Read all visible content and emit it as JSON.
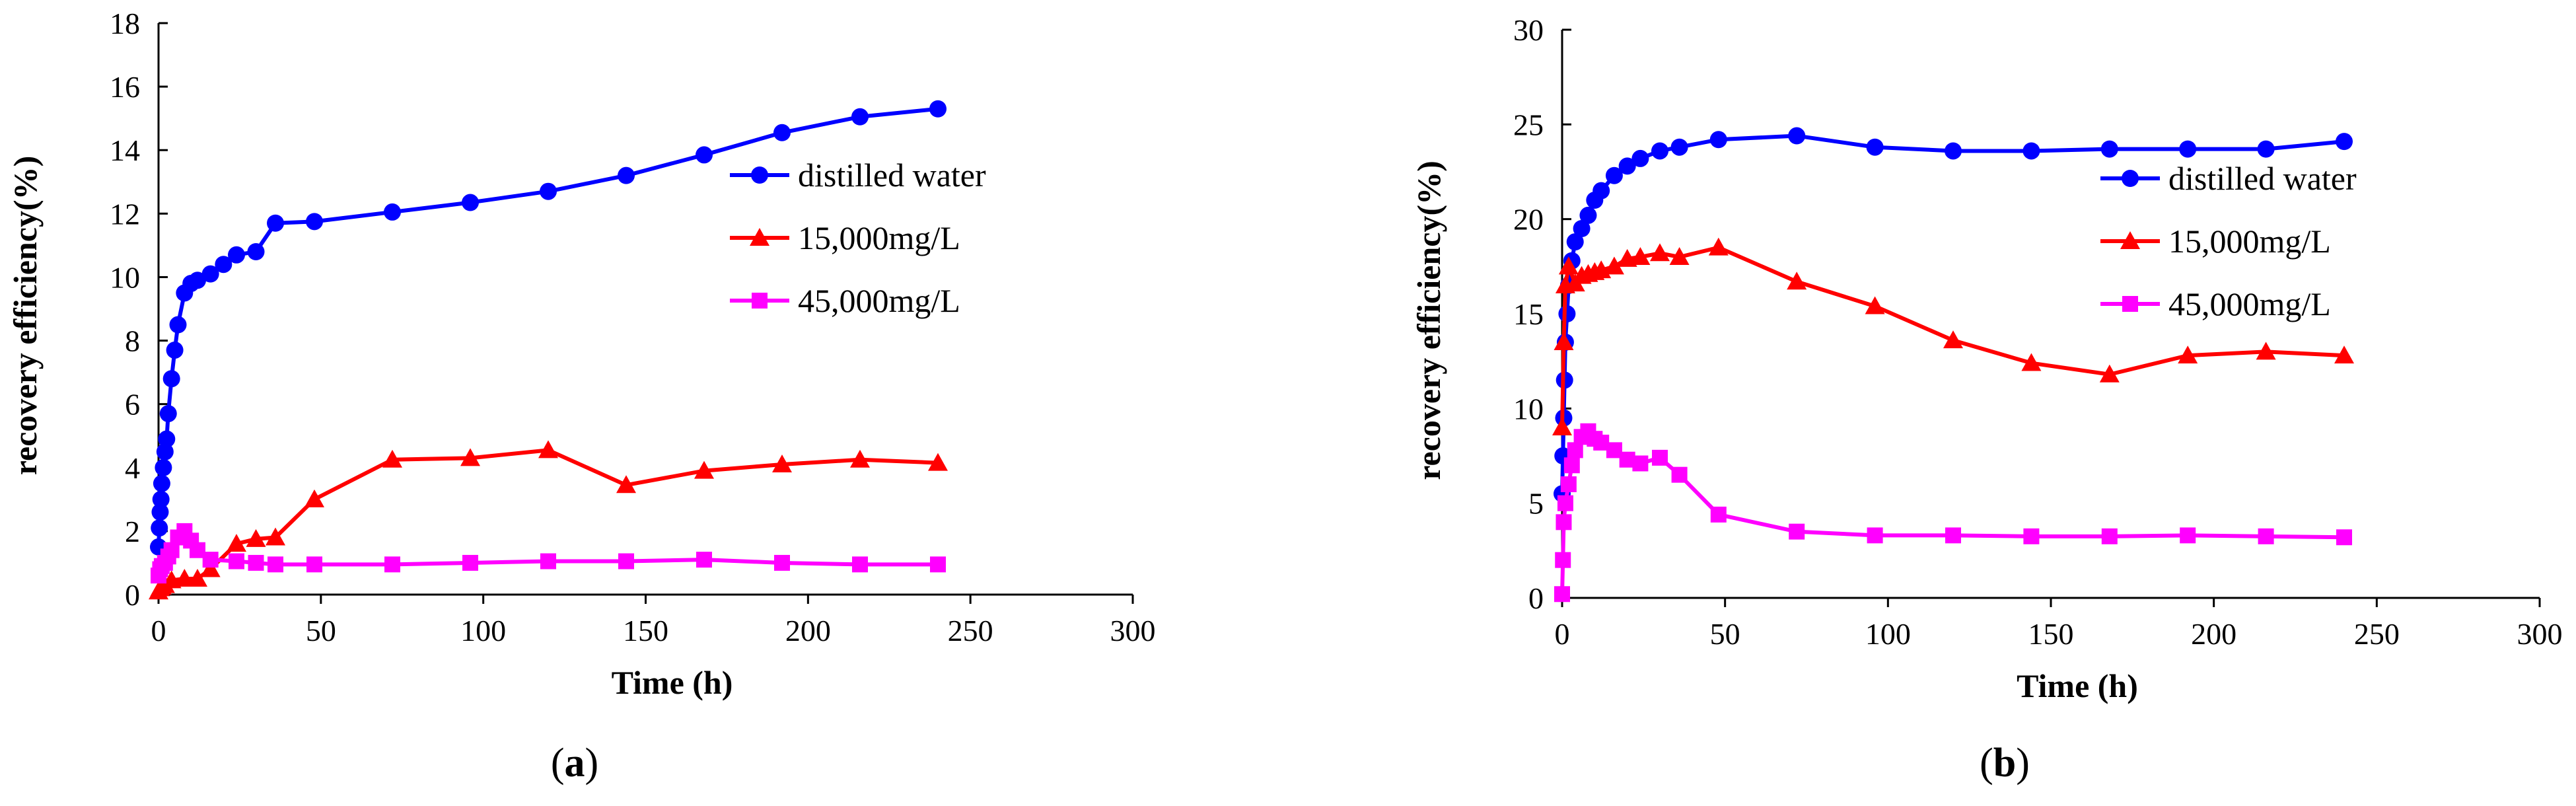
{
  "chart_data": [
    {
      "type": "line",
      "panel": "a",
      "caption_label": "a",
      "xlabel": "Time (h)",
      "ylabel": "recovery efficiency(%)",
      "xlim": [
        0,
        300
      ],
      "ylim": [
        0,
        18
      ],
      "xticks": [
        0,
        50,
        100,
        150,
        200,
        250,
        300
      ],
      "yticks": [
        0,
        2,
        4,
        6,
        8,
        10,
        12,
        14,
        16,
        18
      ],
      "grid": false,
      "legend_position": "right-upper",
      "series": [
        {
          "name": "distilled water",
          "color": "#0000ff",
          "marker": "circle",
          "x": [
            0,
            0.25,
            0.5,
            0.75,
            1,
            1.5,
            2,
            2.5,
            3,
            4,
            5,
            6,
            8,
            10,
            12,
            16,
            20,
            24,
            30,
            36,
            48,
            72,
            96,
            120,
            144,
            168,
            192,
            216,
            240
          ],
          "y": [
            1.5,
            2.1,
            2.6,
            3.0,
            3.5,
            4.0,
            4.5,
            4.9,
            5.7,
            6.8,
            7.7,
            8.5,
            9.5,
            9.8,
            9.9,
            10.1,
            10.4,
            10.7,
            10.8,
            11.7,
            11.75,
            12.05,
            12.35,
            12.7,
            13.2,
            13.85,
            14.55,
            15.05,
            15.3
          ]
        },
        {
          "name": "15,000mg/L",
          "color": "#ff0000",
          "marker": "triangle",
          "x": [
            0,
            0.5,
            1,
            2,
            4,
            8,
            12,
            16,
            24,
            30,
            36,
            48,
            72,
            96,
            120,
            144,
            168,
            192,
            216,
            240
          ],
          "y": [
            0.1,
            0.2,
            0.25,
            0.3,
            0.45,
            0.5,
            0.5,
            0.8,
            1.6,
            1.75,
            1.8,
            3.0,
            4.25,
            4.3,
            4.55,
            3.45,
            3.9,
            4.1,
            4.25,
            4.15
          ]
        },
        {
          "name": "45,000mg/L",
          "color": "#ff00ff",
          "marker": "square",
          "x": [
            0,
            0.5,
            1,
            2,
            3,
            4,
            6,
            8,
            10,
            12,
            16,
            24,
            30,
            36,
            48,
            72,
            96,
            120,
            144,
            168,
            192,
            216,
            240
          ],
          "y": [
            0.6,
            0.8,
            0.9,
            1.0,
            1.2,
            1.4,
            1.8,
            2.0,
            1.7,
            1.4,
            1.1,
            1.05,
            1.0,
            0.95,
            0.95,
            0.95,
            1.0,
            1.05,
            1.05,
            1.1,
            1.0,
            0.95,
            0.95
          ]
        }
      ]
    },
    {
      "type": "line",
      "panel": "b",
      "caption_label": "b",
      "xlabel": "Time (h)",
      "ylabel": "recovery efficiency(%)",
      "xlim": [
        0,
        300
      ],
      "ylim": [
        0,
        30
      ],
      "xticks": [
        0,
        50,
        100,
        150,
        200,
        250,
        300
      ],
      "yticks": [
        0,
        5,
        10,
        15,
        20,
        25,
        30
      ],
      "grid": false,
      "legend_position": "right-upper",
      "series": [
        {
          "name": "distilled water",
          "color": "#0000ff",
          "marker": "circle",
          "x": [
            0,
            0.25,
            0.5,
            0.75,
            1,
            1.5,
            2,
            3,
            4,
            6,
            8,
            10,
            12,
            16,
            20,
            24,
            30,
            36,
            48,
            72,
            96,
            120,
            144,
            168,
            192,
            216,
            240
          ],
          "y": [
            5.5,
            7.5,
            9.5,
            11.5,
            13.5,
            15.0,
            16.5,
            17.8,
            18.8,
            19.5,
            20.2,
            21.0,
            21.5,
            22.3,
            22.8,
            23.2,
            23.6,
            23.8,
            24.2,
            24.4,
            23.8,
            23.6,
            23.6,
            23.7,
            23.7,
            23.7,
            24.1
          ]
        },
        {
          "name": "15,000mg/L",
          "color": "#ff0000",
          "marker": "triangle",
          "x": [
            0,
            0.5,
            1,
            2,
            4,
            6,
            8,
            10,
            12,
            16,
            20,
            24,
            30,
            36,
            48,
            72,
            96,
            120,
            144,
            168,
            192,
            216,
            240
          ],
          "y": [
            9.0,
            13.5,
            16.5,
            17.5,
            16.6,
            17.0,
            17.1,
            17.2,
            17.3,
            17.5,
            17.9,
            18.0,
            18.2,
            18.0,
            18.5,
            16.7,
            15.4,
            13.6,
            12.4,
            11.8,
            12.8,
            13.0,
            12.8
          ]
        },
        {
          "name": "45,000mg/L",
          "color": "#ff00ff",
          "marker": "square",
          "x": [
            0,
            0.25,
            0.5,
            1,
            2,
            3,
            4,
            6,
            8,
            10,
            12,
            16,
            20,
            24,
            30,
            36,
            48,
            72,
            96,
            120,
            144,
            168,
            192,
            216,
            240
          ],
          "y": [
            0.2,
            2.0,
            4.0,
            5.0,
            6.0,
            7.0,
            7.8,
            8.5,
            8.8,
            8.4,
            8.2,
            7.8,
            7.3,
            7.1,
            7.4,
            6.5,
            4.4,
            3.5,
            3.3,
            3.3,
            3.25,
            3.25,
            3.3,
            3.25,
            3.2
          ]
        }
      ]
    }
  ]
}
